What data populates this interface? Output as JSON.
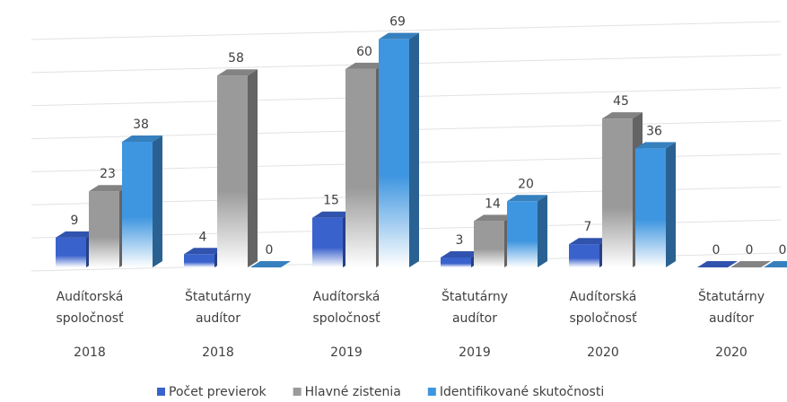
{
  "chart_data": {
    "type": "bar3d",
    "categories": [
      [
        "Audítorská",
        "spoločnosť"
      ],
      [
        "Štatutárny",
        "audítor"
      ],
      [
        "Audítorská",
        "spoločnosť"
      ],
      [
        "Štatutárny",
        "audítor"
      ],
      [
        "Audítorská",
        "spoločnosť"
      ],
      [
        "Štatutárny",
        "audítor"
      ]
    ],
    "years": [
      "2018",
      "2018",
      "2019",
      "2019",
      "2020",
      "2020"
    ],
    "series": [
      {
        "name": "Počet previerok",
        "color": "#3a62cc",
        "values": [
          9,
          4,
          15,
          3,
          7,
          0
        ]
      },
      {
        "name": "Hlavné zistenia",
        "color": "#9a9a9a",
        "values": [
          23,
          58,
          60,
          14,
          45,
          0
        ]
      },
      {
        "name": "Identifikované skutočnosti",
        "color": "#3f96e0",
        "values": [
          38,
          0,
          69,
          20,
          36,
          0
        ]
      }
    ],
    "ylim": [
      0,
      70
    ],
    "yticks": [
      0,
      10,
      20,
      30,
      40,
      50,
      60,
      70
    ],
    "grid": true,
    "legend": "bottom"
  }
}
